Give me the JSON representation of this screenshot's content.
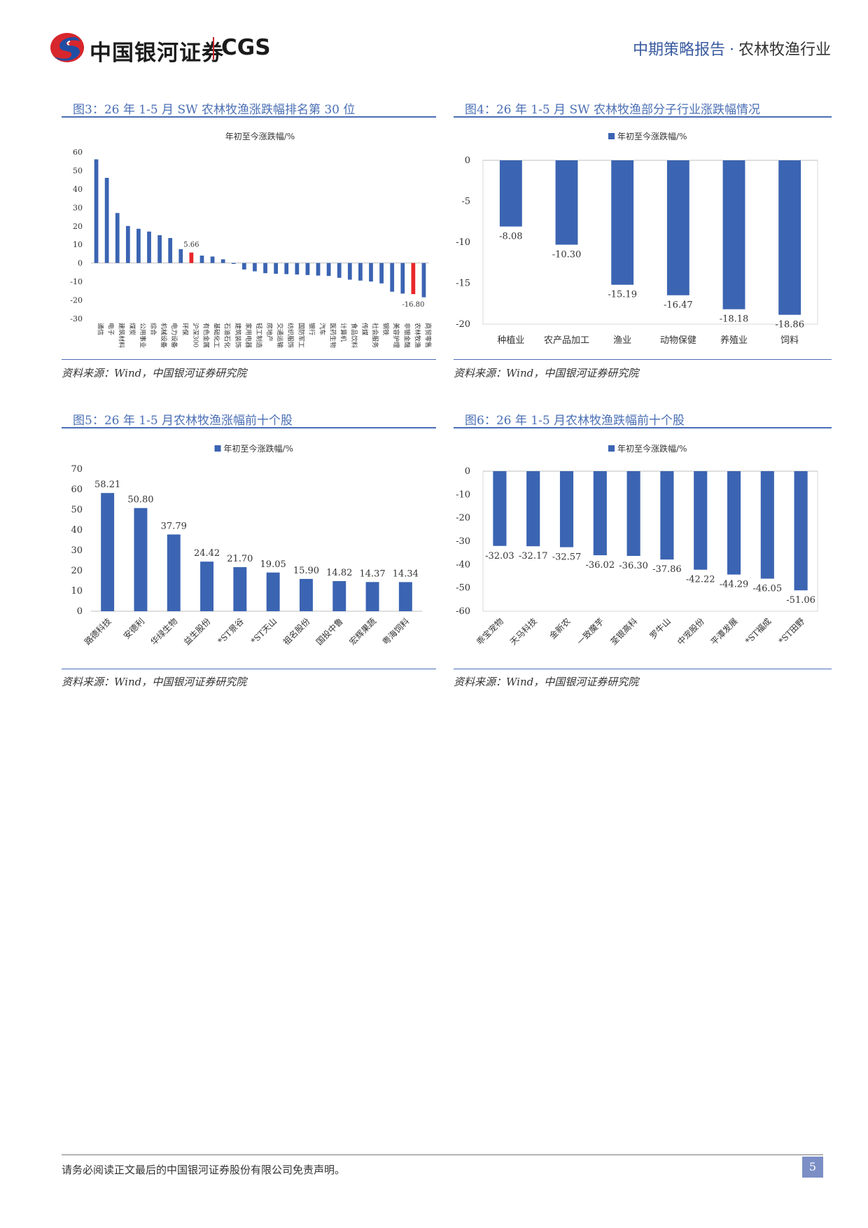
{
  "header": {
    "brand_cn": "中国银河证券",
    "brand_en": "CGS",
    "report_type": "中期策略报告",
    "dot": "·",
    "industry": "农林牧渔行业"
  },
  "figures": [
    {
      "title": "图3：26 年 1-5 月 SW 农林牧渔涨跌幅排名第 30 位",
      "source": "资料来源：Wind，中国银河证券研究院"
    },
    {
      "title": "图4：26 年 1-5 月 SW 农林牧渔部分子行业涨跌幅情况",
      "source": "资料来源：Wind，中国银河证券研究院"
    },
    {
      "title": "图5：26 年 1-5 月农林牧渔涨幅前十个股",
      "source": "资料来源：Wind，中国银河证券研究院"
    },
    {
      "title": "图6：26 年 1-5 月农林牧渔跌幅前十个股",
      "source": "资料来源：Wind，中国银河证券研究院"
    }
  ],
  "chart_data": [
    {
      "type": "bar",
      "title": "年初至今涨跌幅/%",
      "categories": [
        "通信",
        "电子",
        "建筑材料",
        "煤炭",
        "公用事业",
        "综合",
        "机械设备",
        "电力设备",
        "环保",
        "沪深300",
        "有色金属",
        "基础化工",
        "石油石化",
        "建筑装饰",
        "家用电器",
        "轻工制造",
        "房地产",
        "交通运输",
        "纺织服饰",
        "国防军工",
        "银行",
        "汽车",
        "医药生物",
        "计算机",
        "食品饮料",
        "传媒",
        "社会服务",
        "钢铁",
        "美容护理",
        "非银金融",
        "农林牧渔",
        "商贸零售"
      ],
      "values": [
        56.0,
        46.0,
        27.0,
        20.0,
        18.5,
        17.0,
        15.0,
        13.5,
        7.5,
        5.66,
        4.0,
        3.5,
        2.0,
        -0.5,
        -3.5,
        -4.5,
        -5.5,
        -5.8,
        -6.0,
        -6.2,
        -6.5,
        -6.8,
        -7.0,
        -8.0,
        -9.0,
        -9.5,
        -10.0,
        -11.0,
        -15.5,
        -16.5,
        -16.8,
        -18.5
      ],
      "highlight": [
        "沪深300",
        "农林牧渔"
      ],
      "data_labels": {
        "沪深300": "5.66",
        "农林牧渔": "-16.80"
      },
      "yticks": [
        "60",
        "50",
        "40",
        "30",
        "20",
        "10",
        "0",
        "-10",
        "-20",
        "-30"
      ],
      "ylim": [
        -30,
        60
      ],
      "colors": {
        "bar": "#3b64b2",
        "highlight": "#e8262a"
      }
    },
    {
      "type": "bar",
      "legend": "年初至今涨跌幅/%",
      "categories": [
        "种植业",
        "农产品加工",
        "渔业",
        "动物保健",
        "养殖业",
        "饲料"
      ],
      "values": [
        -8.08,
        -10.3,
        -15.19,
        -16.47,
        -18.18,
        -18.86
      ],
      "labels": [
        "-8.08",
        "-10.30",
        "-15.19",
        "-16.47",
        "-18.18",
        "-18.86"
      ],
      "yticks": [
        "0",
        "-5",
        "-10",
        "-15",
        "-20"
      ],
      "ylim": [
        -20,
        0
      ],
      "colors": {
        "bar": "#3b64b2"
      }
    },
    {
      "type": "bar",
      "legend": "年初至今涨跌幅/%",
      "categories": [
        "路德科技",
        "安德利",
        "华绿生物",
        "益生股份",
        "*ST景谷",
        "*ST天山",
        "祖名股份",
        "国投中鲁",
        "宏辉果蔬",
        "粤海饲料"
      ],
      "values": [
        58.21,
        50.8,
        37.79,
        24.42,
        21.7,
        19.05,
        15.9,
        14.82,
        14.37,
        14.34
      ],
      "labels": [
        "58.21",
        "50.80",
        "37.79",
        "24.42",
        "21.70",
        "19.05",
        "15.90",
        "14.82",
        "14.37",
        "14.34"
      ],
      "yticks": [
        "70",
        "60",
        "50",
        "40",
        "30",
        "20",
        "10",
        "0"
      ],
      "ylim": [
        0,
        70
      ],
      "colors": {
        "bar": "#3b64b2"
      }
    },
    {
      "type": "bar",
      "legend": "年初至今涨跌幅/%",
      "categories": [
        "乖宝宠物",
        "天马科技",
        "金新农",
        "一致魔芋",
        "荃银高科",
        "罗牛山",
        "中宠股份",
        "平潭发展",
        "*ST福成",
        "*ST田野"
      ],
      "values": [
        -32.03,
        -32.17,
        -32.57,
        -36.02,
        -36.3,
        -37.86,
        -42.22,
        -44.29,
        -46.05,
        -51.06
      ],
      "labels": [
        "-32.03",
        "-32.17",
        "-32.57",
        "-36.02",
        "-36.30",
        "-37.86",
        "-42.22",
        "-44.29",
        "-46.05",
        "-51.06"
      ],
      "yticks": [
        "0",
        "-10",
        "-20",
        "-30",
        "-40",
        "-50",
        "-60"
      ],
      "ylim": [
        -60,
        0
      ],
      "colors": {
        "bar": "#3b64b2"
      }
    }
  ],
  "footer": {
    "disclaimer": "请务必阅读正文最后的中国银河证券股份有限公司免责声明。",
    "page": "5"
  }
}
